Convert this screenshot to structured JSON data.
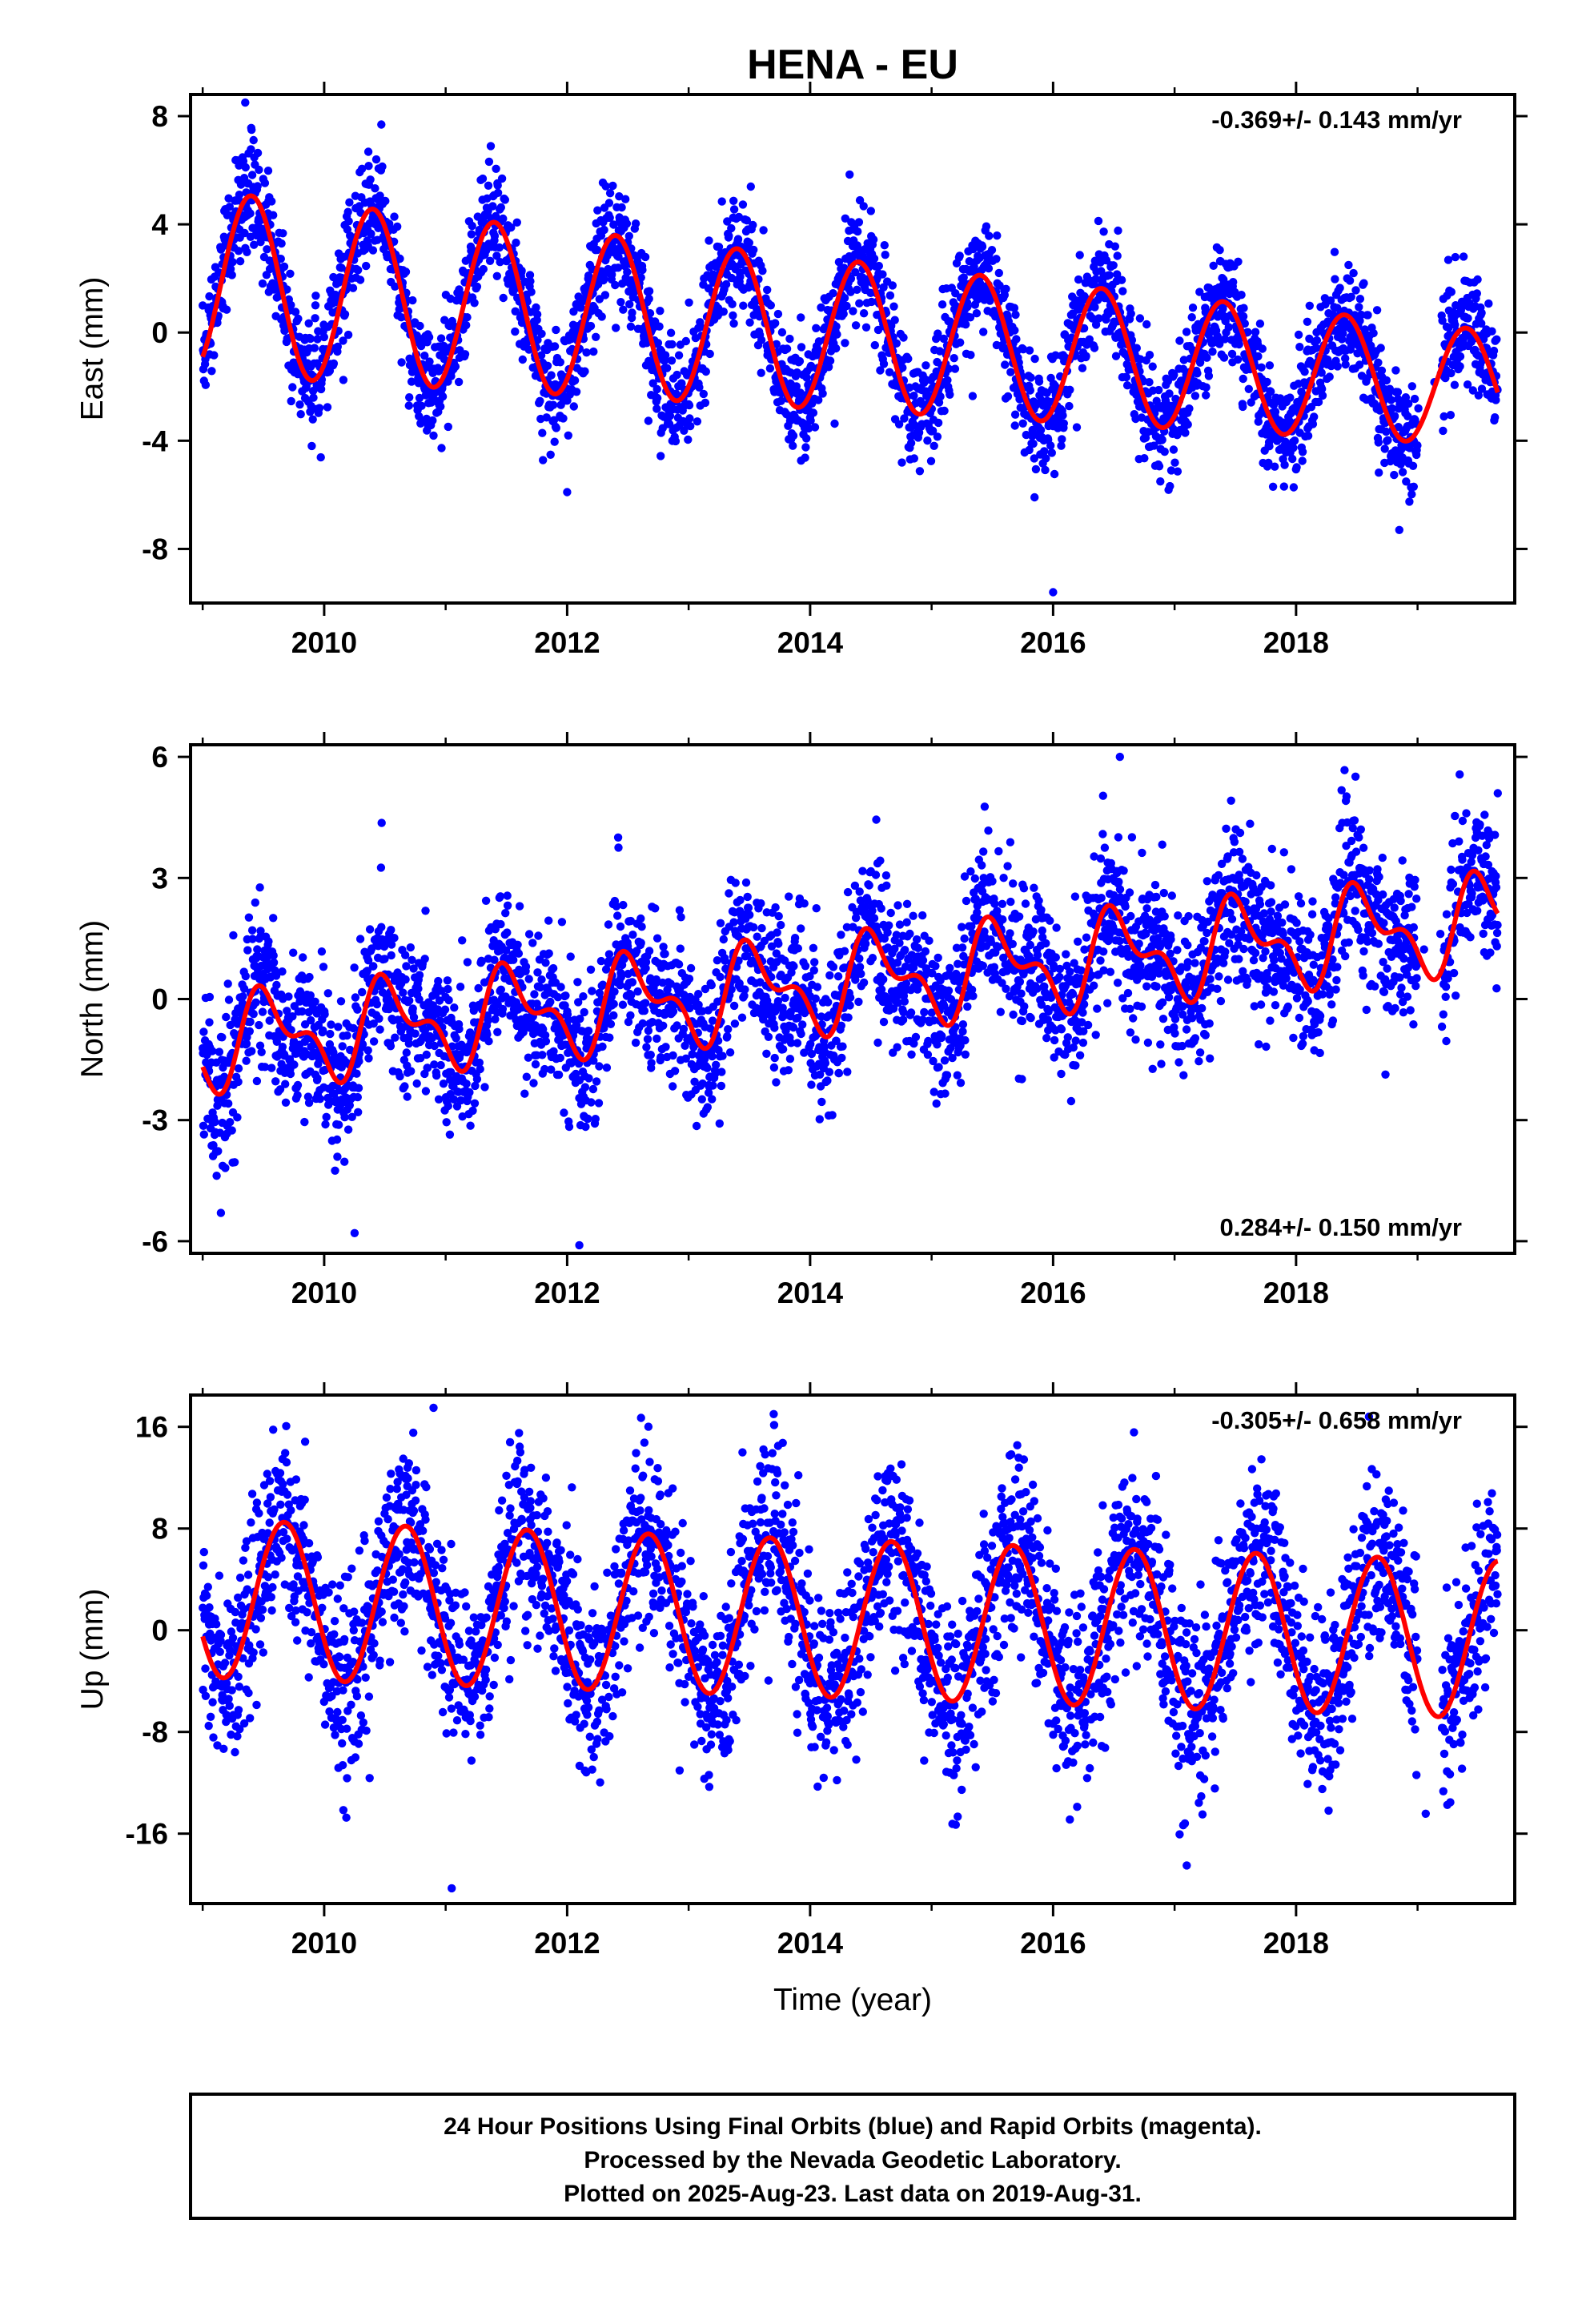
{
  "chart_data": {
    "type": "scatter",
    "title": "HENA - EU",
    "xlabel": "Time (year)",
    "xlim": [
      2008.9,
      2019.8
    ],
    "x_ticks": [
      2010,
      2012,
      2014,
      2016,
      2018
    ],
    "x_tick_labels": [
      "2010",
      "2012",
      "2014",
      "2016",
      "2018"
    ],
    "data_span": [
      2009.0,
      2019.66
    ],
    "last_data_year": 2019.66,
    "gap": [
      2019.0,
      2019.2
    ],
    "marker_color": "#0000ff",
    "fit_color": "#ff0000",
    "panels": [
      {
        "id": "east",
        "ylabel": "East (mm)",
        "ylim": [
          -10,
          8.8
        ],
        "y_ticks": [
          8,
          4,
          0,
          -4,
          -8
        ],
        "y_tick_labels": [
          "8",
          "4",
          "0",
          "-4",
          "-8"
        ],
        "rate": "-0.369+/- 0.143 mm/yr",
        "rate_position": "top-right",
        "model": {
          "t0": 2009.0,
          "offset": 1.85,
          "slope": -0.369,
          "amplitude": 3.4,
          "amplitude_trend": -0.12,
          "phase": 2009.15,
          "semiannual": 0.0
        },
        "scatter_sd": 1.05,
        "fit_points": [
          [
            2009.0,
            -0.7
          ],
          [
            2009.4,
            4.5
          ],
          [
            2009.95,
            -1.2
          ],
          [
            2010.4,
            4.1
          ],
          [
            2010.95,
            -1.6
          ],
          [
            2011.4,
            3.8
          ],
          [
            2011.95,
            -2.0
          ],
          [
            2012.4,
            3.4
          ],
          [
            2012.95,
            -2.4
          ],
          [
            2013.4,
            3.0
          ],
          [
            2013.95,
            -2.7
          ],
          [
            2014.4,
            2.6
          ],
          [
            2014.95,
            -3.1
          ],
          [
            2015.4,
            2.3
          ],
          [
            2015.95,
            -3.5
          ],
          [
            2016.4,
            1.9
          ],
          [
            2016.95,
            -3.9
          ],
          [
            2017.4,
            1.5
          ],
          [
            2017.95,
            -4.3
          ],
          [
            2018.4,
            1.2
          ],
          [
            2018.95,
            -4.6
          ],
          [
            2019.4,
            0.8
          ],
          [
            2019.66,
            -2.1
          ]
        ]
      },
      {
        "id": "north",
        "ylabel": "North (mm)",
        "ylim": [
          -6.3,
          6.3
        ],
        "y_ticks": [
          6,
          3,
          0,
          -3,
          -6
        ],
        "y_tick_labels": [
          "6",
          "3",
          "0",
          "-3",
          "-6"
        ],
        "rate": "0.284+/- 0.150 mm/yr",
        "rate_position": "bottom-right",
        "model": {
          "t0": 2009.0,
          "offset": -1.1,
          "slope": 0.284,
          "amplitude": 0.95,
          "amplitude_trend": 0.0,
          "phase": 2009.3,
          "semiannual": 0.55
        },
        "scatter_sd": 0.95,
        "fit_points": [
          [
            2009.0,
            -0.9
          ],
          [
            2009.2,
            -2.4
          ],
          [
            2009.4,
            0.3
          ],
          [
            2009.75,
            -1.9
          ],
          [
            2010.0,
            -0.5
          ],
          [
            2010.25,
            -2.2
          ],
          [
            2010.5,
            0.5
          ],
          [
            2011.0,
            -0.3
          ],
          [
            2011.5,
            0.8
          ],
          [
            2012.0,
            0.1
          ],
          [
            2012.5,
            1.1
          ],
          [
            2013.0,
            0.4
          ],
          [
            2013.5,
            1.4
          ],
          [
            2014.0,
            0.7
          ],
          [
            2014.5,
            1.7
          ],
          [
            2015.0,
            1.0
          ],
          [
            2015.5,
            1.9
          ],
          [
            2016.0,
            1.2
          ],
          [
            2016.5,
            2.2
          ],
          [
            2017.0,
            1.5
          ],
          [
            2017.5,
            2.5
          ],
          [
            2018.0,
            1.8
          ],
          [
            2018.5,
            2.8
          ],
          [
            2019.0,
            2.1
          ],
          [
            2019.5,
            3.1
          ],
          [
            2019.66,
            1.5
          ]
        ]
      },
      {
        "id": "up",
        "ylabel": "Up (mm)",
        "ylim": [
          -21.5,
          18.5
        ],
        "y_ticks": [
          16,
          8,
          0,
          -8,
          -16
        ],
        "y_tick_labels": [
          "16",
          "8",
          "0",
          "-8",
          "-16"
        ],
        "rate": "-0.305+/- 0.658 mm/yr",
        "rate_position": "top-right",
        "model": {
          "t0": 2009.0,
          "offset": 2.5,
          "slope": -0.305,
          "amplitude": 6.2,
          "amplitude_trend": 0.0,
          "phase": 2009.42,
          "semiannual": 0.0
        },
        "scatter_sd": 3.6,
        "fit_points": [
          [
            2009.0,
            -3.5
          ],
          [
            2009.65,
            8.5
          ],
          [
            2010.1,
            -3.8
          ],
          [
            2010.65,
            8.1
          ],
          [
            2011.1,
            -4.0
          ],
          [
            2011.65,
            7.8
          ],
          [
            2012.1,
            -4.3
          ],
          [
            2012.65,
            7.4
          ],
          [
            2013.1,
            -4.5
          ],
          [
            2013.65,
            7.1
          ],
          [
            2014.1,
            -4.8
          ],
          [
            2014.65,
            6.8
          ],
          [
            2015.1,
            -5.1
          ],
          [
            2015.65,
            6.5
          ],
          [
            2016.1,
            -5.4
          ],
          [
            2016.65,
            6.2
          ],
          [
            2017.1,
            -5.7
          ],
          [
            2017.65,
            5.9
          ],
          [
            2018.1,
            -6.0
          ],
          [
            2018.65,
            5.6
          ],
          [
            2019.1,
            -6.3
          ],
          [
            2019.66,
            5.3
          ]
        ]
      }
    ],
    "outliers": {
      "east": [
        [
          2009.35,
          8.5
        ],
        [
          2016.0,
          -9.6
        ],
        [
          2018.85,
          -7.3
        ],
        [
          2012.0,
          -5.9
        ]
      ],
      "north": [
        [
          2009.15,
          -5.3
        ],
        [
          2010.25,
          -5.8
        ],
        [
          2012.1,
          -6.1
        ],
        [
          2016.55,
          6.0
        ],
        [
          2019.66,
          5.1
        ]
      ],
      "up": [
        [
          2011.05,
          -20.3
        ],
        [
          2010.9,
          17.5
        ],
        [
          2017.1,
          -18.5
        ],
        [
          2013.7,
          17.0
        ],
        [
          2018.6,
          16.8
        ]
      ]
    }
  },
  "footer": {
    "line1": "24 Hour Positions Using Final Orbits (blue) and Rapid Orbits (magenta).",
    "line2": "Processed by the Nevada Geodetic Laboratory.",
    "line3": "Plotted on 2025-Aug-23. Last data on 2019-Aug-31."
  }
}
